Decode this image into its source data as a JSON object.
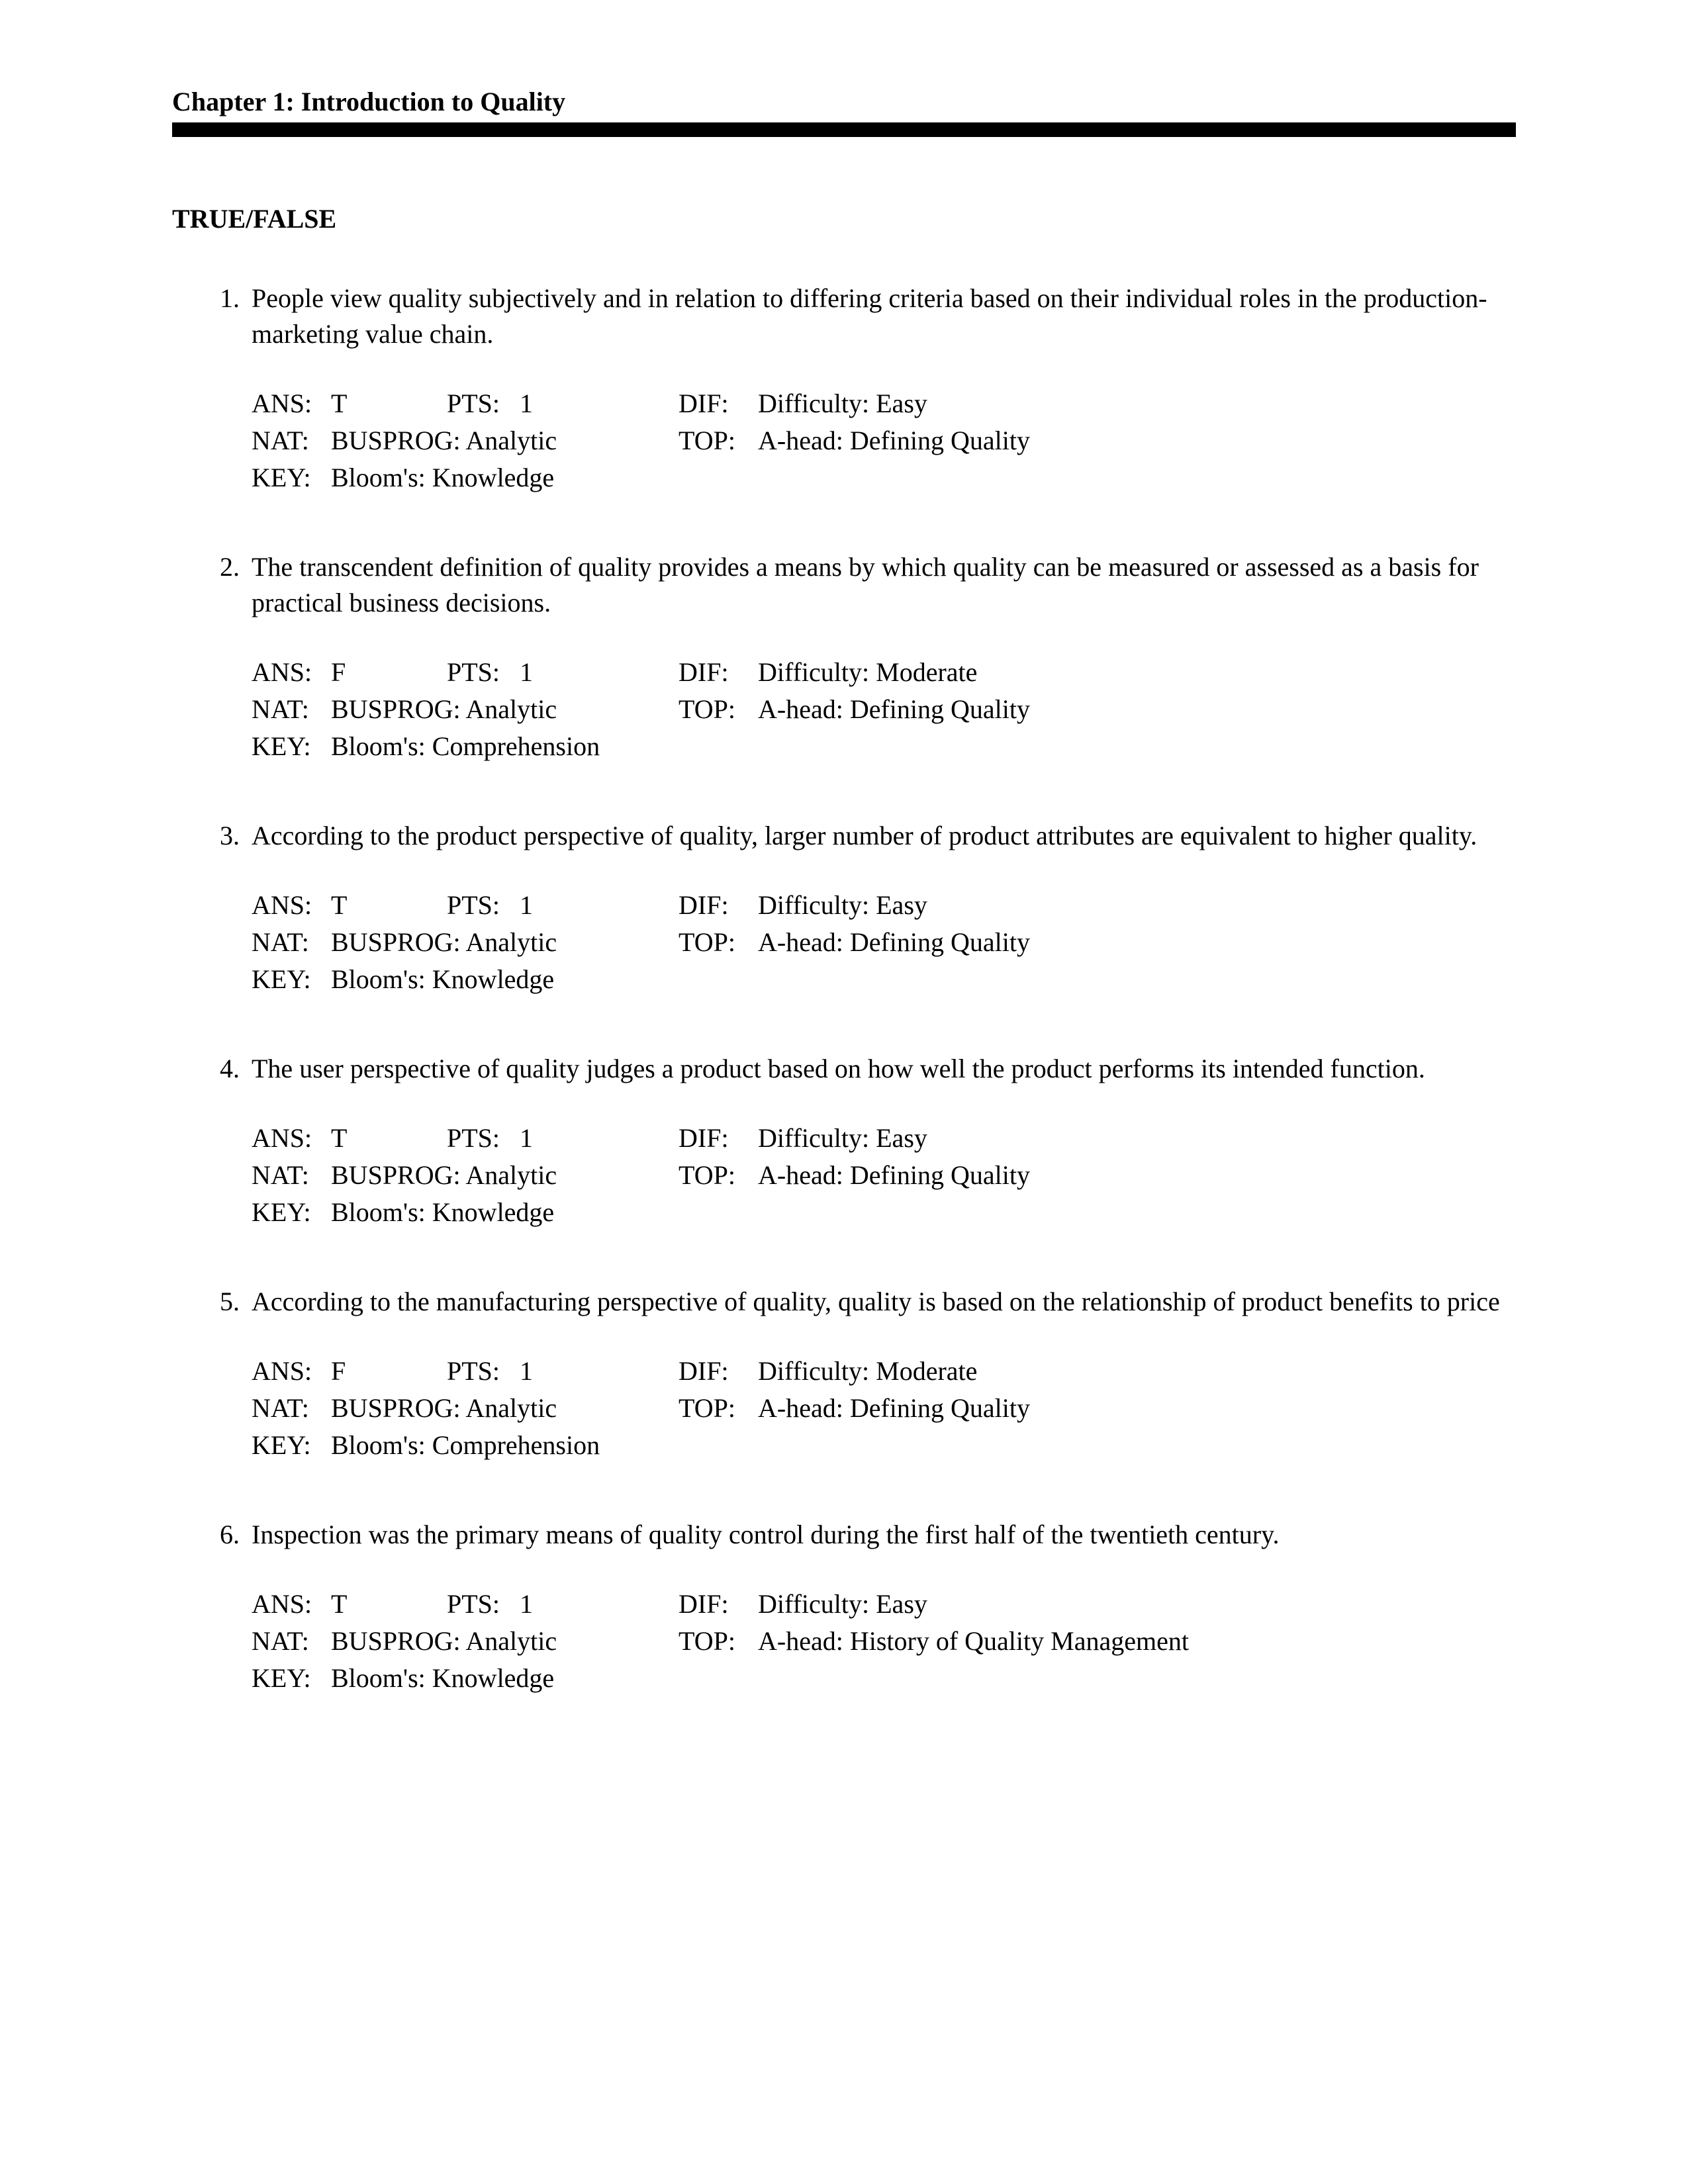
{
  "header": {
    "chapter_title": "Chapter 1: Introduction to Quality"
  },
  "section": {
    "title": "TRUE/FALSE"
  },
  "labels": {
    "ans": "ANS:",
    "pts": "PTS:",
    "dif": "DIF:",
    "nat": "NAT:",
    "top": "TOP:",
    "key": "KEY:"
  },
  "questions": [
    {
      "num": "1.",
      "text": "People view quality subjectively and in relation to differing criteria based on their individual roles in the production-marketing value chain.",
      "ans": "T",
      "pts": "1",
      "dif": "Difficulty: Easy",
      "nat": "BUSPROG: Analytic",
      "top": "A-head: Defining Quality",
      "key": "Bloom's: Knowledge"
    },
    {
      "num": "2.",
      "text": "The transcendent definition of quality provides a means by which quality can be measured or assessed as a basis for practical business decisions.",
      "ans": "F",
      "pts": "1",
      "dif": "Difficulty: Moderate",
      "nat": "BUSPROG: Analytic",
      "top": "A-head: Defining Quality",
      "key": "Bloom's: Comprehension"
    },
    {
      "num": "3.",
      "text": "According to the product perspective of quality, larger number of product attributes are equivalent to higher quality.",
      "ans": "T",
      "pts": "1",
      "dif": "Difficulty: Easy",
      "nat": "BUSPROG: Analytic",
      "top": "A-head: Defining Quality",
      "key": "Bloom's: Knowledge"
    },
    {
      "num": "4.",
      "text": "The user perspective of quality judges a product based on how well the product performs its intended function.",
      "ans": "T",
      "pts": "1",
      "dif": "Difficulty: Easy",
      "nat": "BUSPROG: Analytic",
      "top": "A-head: Defining Quality",
      "key": "Bloom's: Knowledge"
    },
    {
      "num": "5.",
      "text": "According to the manufacturing perspective of quality, quality is based on the relationship of product benefits to price",
      "ans": "F",
      "pts": "1",
      "dif": "Difficulty: Moderate",
      "nat": "BUSPROG: Analytic",
      "top": "A-head: Defining Quality",
      "key": "Bloom's: Comprehension"
    },
    {
      "num": "6.",
      "text": "Inspection was the primary means of quality control during the first half of the twentieth century.",
      "ans": "T",
      "pts": "1",
      "dif": "Difficulty: Easy",
      "nat": "BUSPROG: Analytic",
      "top": "A-head: History of Quality Management",
      "key": "Bloom's: Knowledge"
    }
  ],
  "style": {
    "page_bg": "#ffffff",
    "text_color": "#000000",
    "rule_color": "#000000",
    "font_family": "Times New Roman",
    "body_fontsize_pt": 20,
    "header_fontsize_pt": 20
  }
}
